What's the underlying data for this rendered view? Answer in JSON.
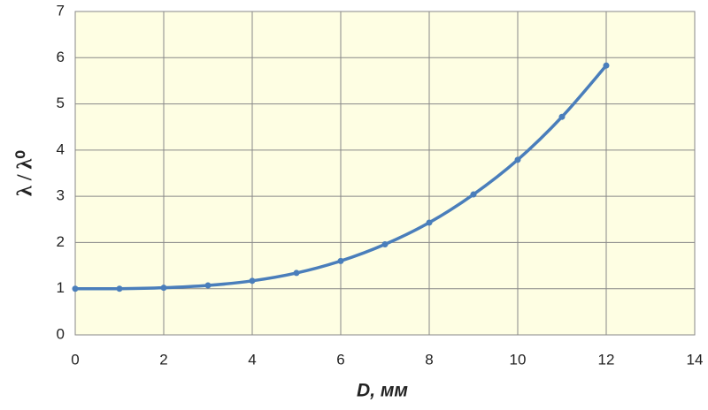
{
  "chart_data": {
    "type": "line",
    "x_label": "D, мм",
    "y_label": "λ / λ⁰",
    "x": [
      0,
      1,
      2,
      3,
      4,
      5,
      6,
      7,
      8,
      9,
      10,
      11,
      12
    ],
    "series": [
      {
        "name": "λ / λ⁰",
        "color": "#4a7ebb",
        "values": [
          1.0,
          1.0,
          1.02,
          1.07,
          1.17,
          1.34,
          1.6,
          1.96,
          2.43,
          3.04,
          3.79,
          4.72,
          5.83
        ]
      }
    ],
    "xlim": [
      0,
      14
    ],
    "xticks": [
      0,
      2,
      4,
      6,
      8,
      10,
      12,
      14
    ],
    "ylim": [
      0,
      7
    ],
    "yticks": [
      0,
      1,
      2,
      3,
      4,
      5,
      6,
      7
    ],
    "grid": true,
    "background": "#fefee3"
  }
}
